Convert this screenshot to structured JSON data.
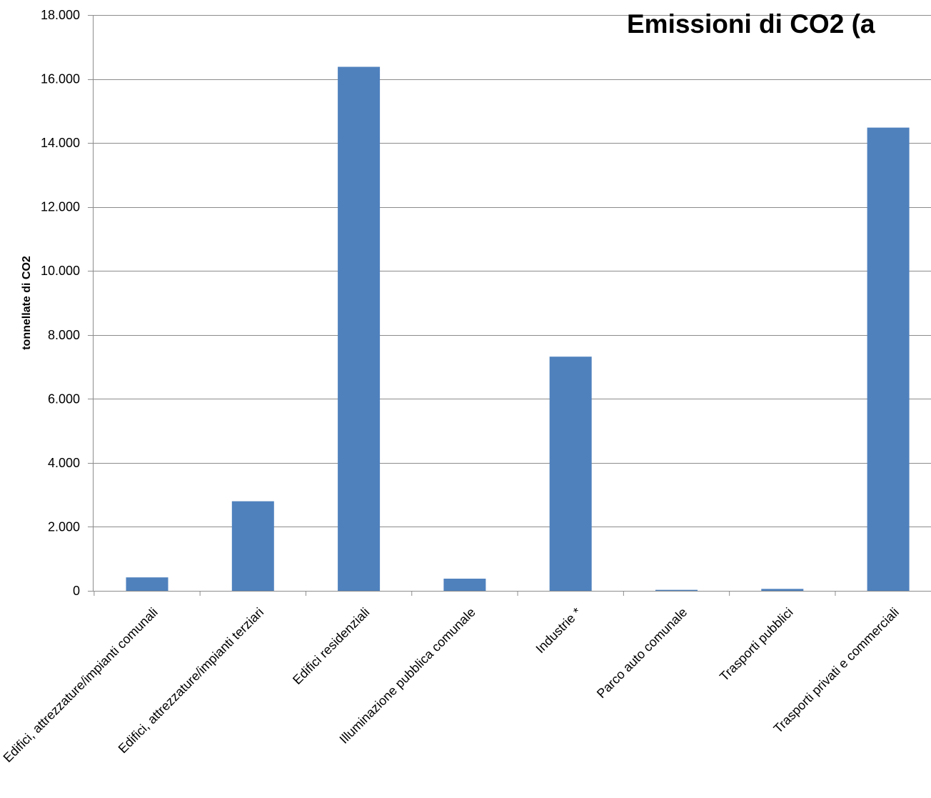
{
  "chart_data": {
    "type": "bar",
    "title": "Emissioni di CO2 (a",
    "xlabel": "",
    "ylabel": "tonnellate di CO2",
    "ylim": [
      0,
      18000
    ],
    "yticks": [
      0,
      2000,
      4000,
      6000,
      8000,
      10000,
      12000,
      14000,
      16000,
      18000
    ],
    "ytick_labels": [
      "0",
      "2.000",
      "4.000",
      "6.000",
      "8.000",
      "10.000",
      "12.000",
      "14.000",
      "16.000",
      "18.000"
    ],
    "categories": [
      "Edifici, attrezzature/impianti comunali",
      "Edifici, attrezzature/impianti terziari",
      "Edifici residenziali",
      "Illuminazione pubblica comunale",
      "Industrie *",
      "Parco auto comunale",
      "Trasporti pubblici",
      "Trasporti privati e commerciali"
    ],
    "values": [
      420,
      2800,
      16380,
      380,
      7320,
      30,
      60,
      14480
    ],
    "bar_color": "#4f81bd",
    "grid": true,
    "legend": "none"
  }
}
